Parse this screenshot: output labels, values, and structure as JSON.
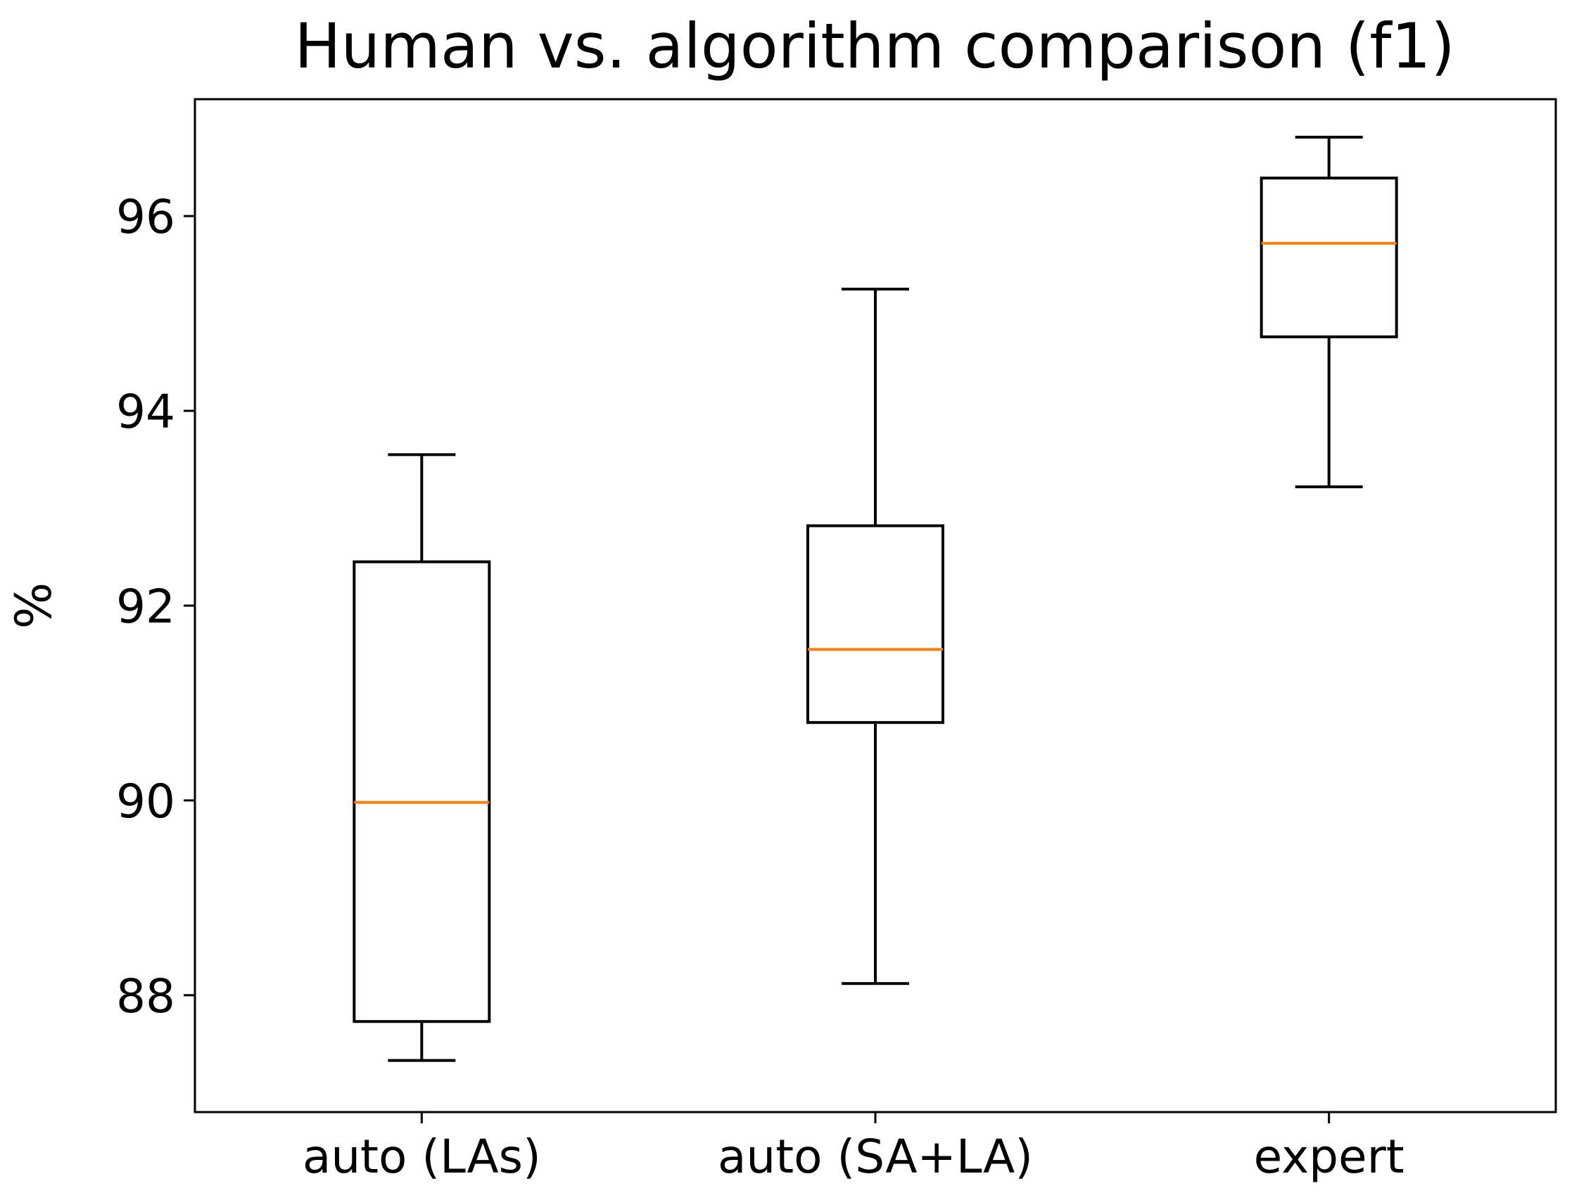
{
  "chart_data": {
    "type": "box",
    "title": "Human vs. algorithm comparison (f1)",
    "xlabel": "",
    "ylabel": "%",
    "ylim": [
      86.8,
      97.2
    ],
    "yticks": [
      88,
      90,
      92,
      94,
      96
    ],
    "grid": false,
    "categories": [
      "auto (LAs)",
      "auto (SA+LA)",
      "expert"
    ],
    "boxes": [
      {
        "label": "auto (LAs)",
        "whisker_low": 87.33,
        "q1": 87.73,
        "median": 89.98,
        "q3": 92.45,
        "whisker_high": 93.55
      },
      {
        "label": "auto (SA+LA)",
        "whisker_low": 88.12,
        "q1": 90.8,
        "median": 91.55,
        "q3": 92.82,
        "whisker_high": 95.25
      },
      {
        "label": "expert",
        "whisker_low": 93.22,
        "q1": 94.76,
        "median": 95.72,
        "q3": 96.39,
        "whisker_high": 96.81
      }
    ],
    "colors": {
      "box": "#000000",
      "median": "#ff7f0e",
      "axes": "#000000"
    }
  }
}
